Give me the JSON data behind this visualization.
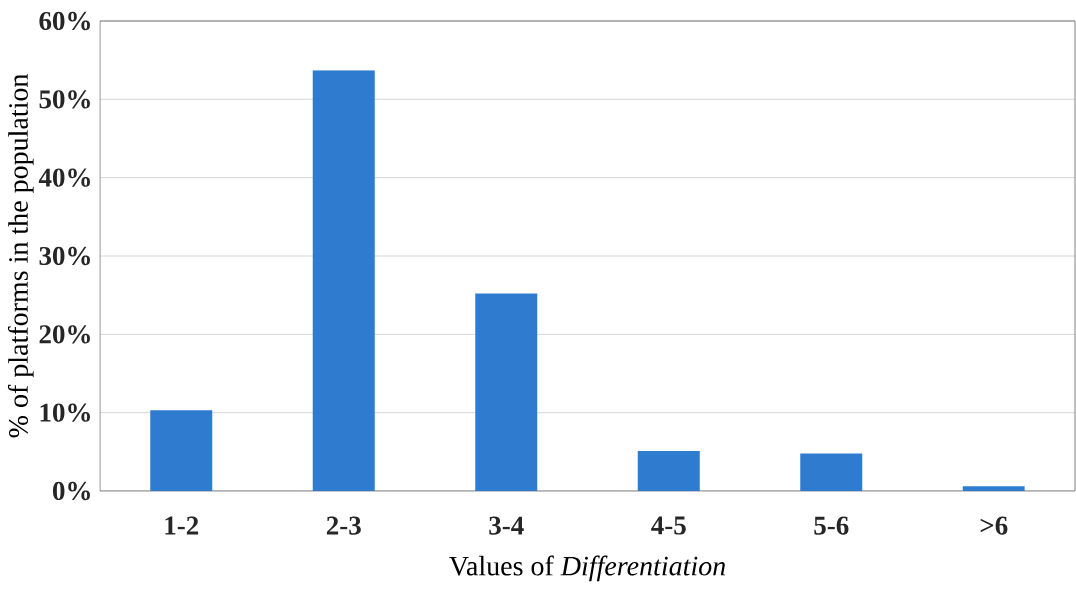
{
  "chart_data": {
    "type": "bar",
    "xlabel": "Values of *Differentiation*",
    "ylabel": "% of platforms in the population",
    "categories": [
      "1-2",
      "2-3",
      "3-4",
      "4-5",
      "5-6",
      ">6"
    ],
    "values": [
      10.3,
      53.7,
      25.2,
      5.1,
      4.8,
      0.6
    ],
    "color": "#2e7bcf",
    "ylim": [
      0,
      60
    ],
    "yticks": [
      {
        "value": 0,
        "label": "0%"
      },
      {
        "value": 10,
        "label": "10%"
      },
      {
        "value": 20,
        "label": "20%"
      },
      {
        "value": 30,
        "label": "30%"
      },
      {
        "value": 40,
        "label": "40%"
      },
      {
        "value": 50,
        "label": "50%"
      },
      {
        "value": 60,
        "label": "60%"
      }
    ],
    "grid": "y"
  }
}
